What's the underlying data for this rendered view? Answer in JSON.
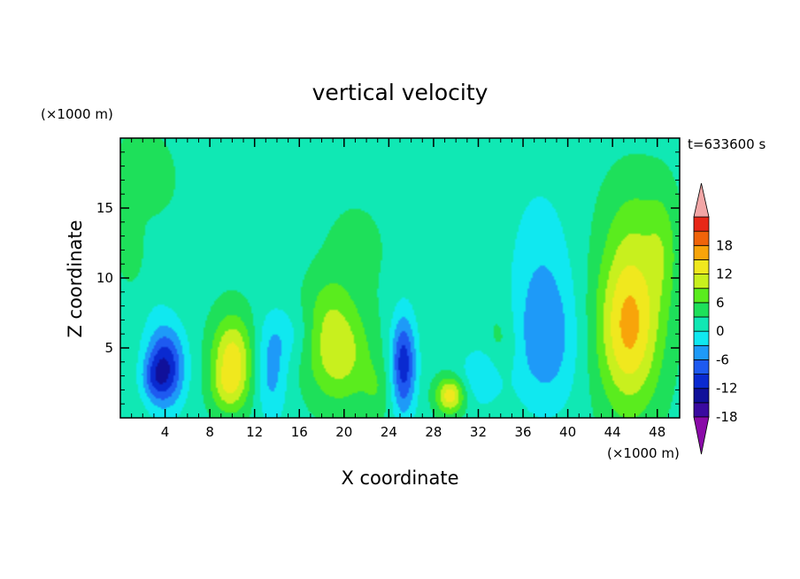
{
  "chart_data": {
    "type": "heatmap",
    "title": "vertical velocity",
    "xlabel": "X coordinate",
    "ylabel": "Z coordinate",
    "x_unit": "(×1000 m)",
    "y_unit": "(×1000 m)",
    "time_label": "t=633600 s",
    "xlim": [
      0,
      50
    ],
    "ylim": [
      0,
      20
    ],
    "x_ticks": [
      "4",
      "8",
      "12",
      "16",
      "20",
      "24",
      "28",
      "32",
      "36",
      "40",
      "44",
      "48"
    ],
    "y_ticks": [
      "5",
      "10",
      "15"
    ],
    "colorbar": {
      "tick_labels": [
        "18",
        "12",
        "6",
        "0",
        "-6",
        "-12",
        "-18"
      ],
      "levels": [
        -21,
        -18,
        -15,
        -12,
        -9,
        -6,
        -3,
        0,
        3,
        6,
        9,
        12,
        15,
        18,
        21
      ],
      "colors": [
        "#8a0aa8",
        "#3a0aa0",
        "#10109a",
        "#0a2ad0",
        "#1e5af0",
        "#1e9af8",
        "#10e8f0",
        "#10e8b4",
        "#1ee05a",
        "#5aec1e",
        "#c8f01e",
        "#f0e81e",
        "#f8a40a",
        "#f0640a",
        "#e82818",
        "#f2a6a6"
      ],
      "extend": "both"
    },
    "background_value": -1,
    "features": [
      {
        "x": 4.0,
        "z": 3.6,
        "sx": 1.2,
        "sz": 2.0,
        "amp": -14
      },
      {
        "x": 3.0,
        "z": 2.8,
        "sx": 0.8,
        "sz": 1.0,
        "amp": -4
      },
      {
        "x": 10.0,
        "z": 4.0,
        "sx": 1.3,
        "sz": 2.3,
        "amp": 12
      },
      {
        "x": 9.5,
        "z": 2.0,
        "sx": 1.0,
        "sz": 1.0,
        "amp": 3
      },
      {
        "x": 13.5,
        "z": 3.2,
        "sx": 1.0,
        "sz": 2.5,
        "amp": -6
      },
      {
        "x": 15.0,
        "z": 6.0,
        "sx": 1.5,
        "sz": 1.5,
        "amp": -3
      },
      {
        "x": 19.5,
        "z": 4.6,
        "sx": 2.0,
        "sz": 2.5,
        "amp": 9
      },
      {
        "x": 18.5,
        "z": 8.0,
        "sx": 1.5,
        "sz": 2.0,
        "amp": 3
      },
      {
        "x": 21.0,
        "z": 12.0,
        "sx": 2.0,
        "sz": 2.5,
        "amp": 2
      },
      {
        "x": 25.3,
        "z": 3.8,
        "sx": 0.8,
        "sz": 2.5,
        "amp": -13
      },
      {
        "x": 23.0,
        "z": 2.0,
        "sx": 1.0,
        "sz": 1.5,
        "amp": 3
      },
      {
        "x": 29.5,
        "z": 1.6,
        "sx": 0.9,
        "sz": 0.9,
        "amp": 12
      },
      {
        "x": 32.5,
        "z": 3.0,
        "sx": 1.5,
        "sz": 1.5,
        "amp": -5
      },
      {
        "x": 34.0,
        "z": 5.0,
        "sx": 1.0,
        "sz": 2.0,
        "amp": 3
      },
      {
        "x": 38.0,
        "z": 5.5,
        "sx": 2.0,
        "sz": 3.5,
        "amp": -7
      },
      {
        "x": 37.5,
        "z": 12.0,
        "sx": 2.0,
        "sz": 4.0,
        "amp": -3
      },
      {
        "x": 45.5,
        "z": 6.6,
        "sx": 2.0,
        "sz": 4.2,
        "amp": 14
      },
      {
        "x": 46.0,
        "z": 14.0,
        "sx": 2.0,
        "sz": 3.0,
        "amp": 3
      },
      {
        "x": 48.5,
        "z": 12.0,
        "sx": 1.0,
        "sz": 3.0,
        "amp": 4
      },
      {
        "x": 2.0,
        "z": 17.0,
        "sx": 2.5,
        "sz": 3.0,
        "amp": 2
      },
      {
        "x": 15.0,
        "z": 19.5,
        "sx": 3.0,
        "sz": 1.5,
        "amp": 1
      },
      {
        "x": 2.5,
        "z": 10.0,
        "sx": 2.0,
        "sz": 2.5,
        "amp": -1.5
      },
      {
        "x": 1.0,
        "z": 11.5,
        "sx": 0.8,
        "sz": 1.5,
        "amp": 4
      }
    ]
  }
}
